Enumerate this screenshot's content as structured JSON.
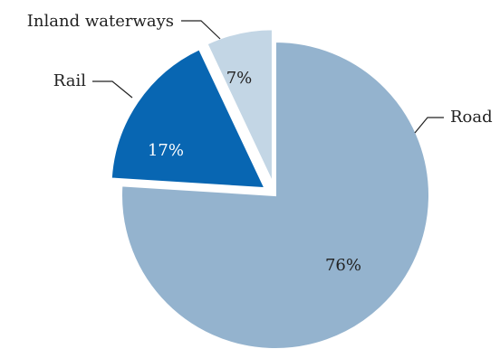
{
  "chart_data": {
    "type": "pie",
    "slices": [
      {
        "label": "Road",
        "value": 76,
        "value_label": "76%",
        "color": "#94b3ce",
        "text_color": "#222222",
        "exploded": false
      },
      {
        "label": "Rail",
        "value": 17,
        "value_label": "17%",
        "color": "#0866b2",
        "text_color": "#ffffff",
        "exploded": true
      },
      {
        "label": "Inland waterways",
        "value": 7,
        "value_label": "7%",
        "color": "#c3d6e5",
        "text_color": "#222222",
        "exploded": true
      }
    ],
    "start": "12 o'clock",
    "direction": "clockwise",
    "legend": "none (direct labels with leader lines)"
  }
}
